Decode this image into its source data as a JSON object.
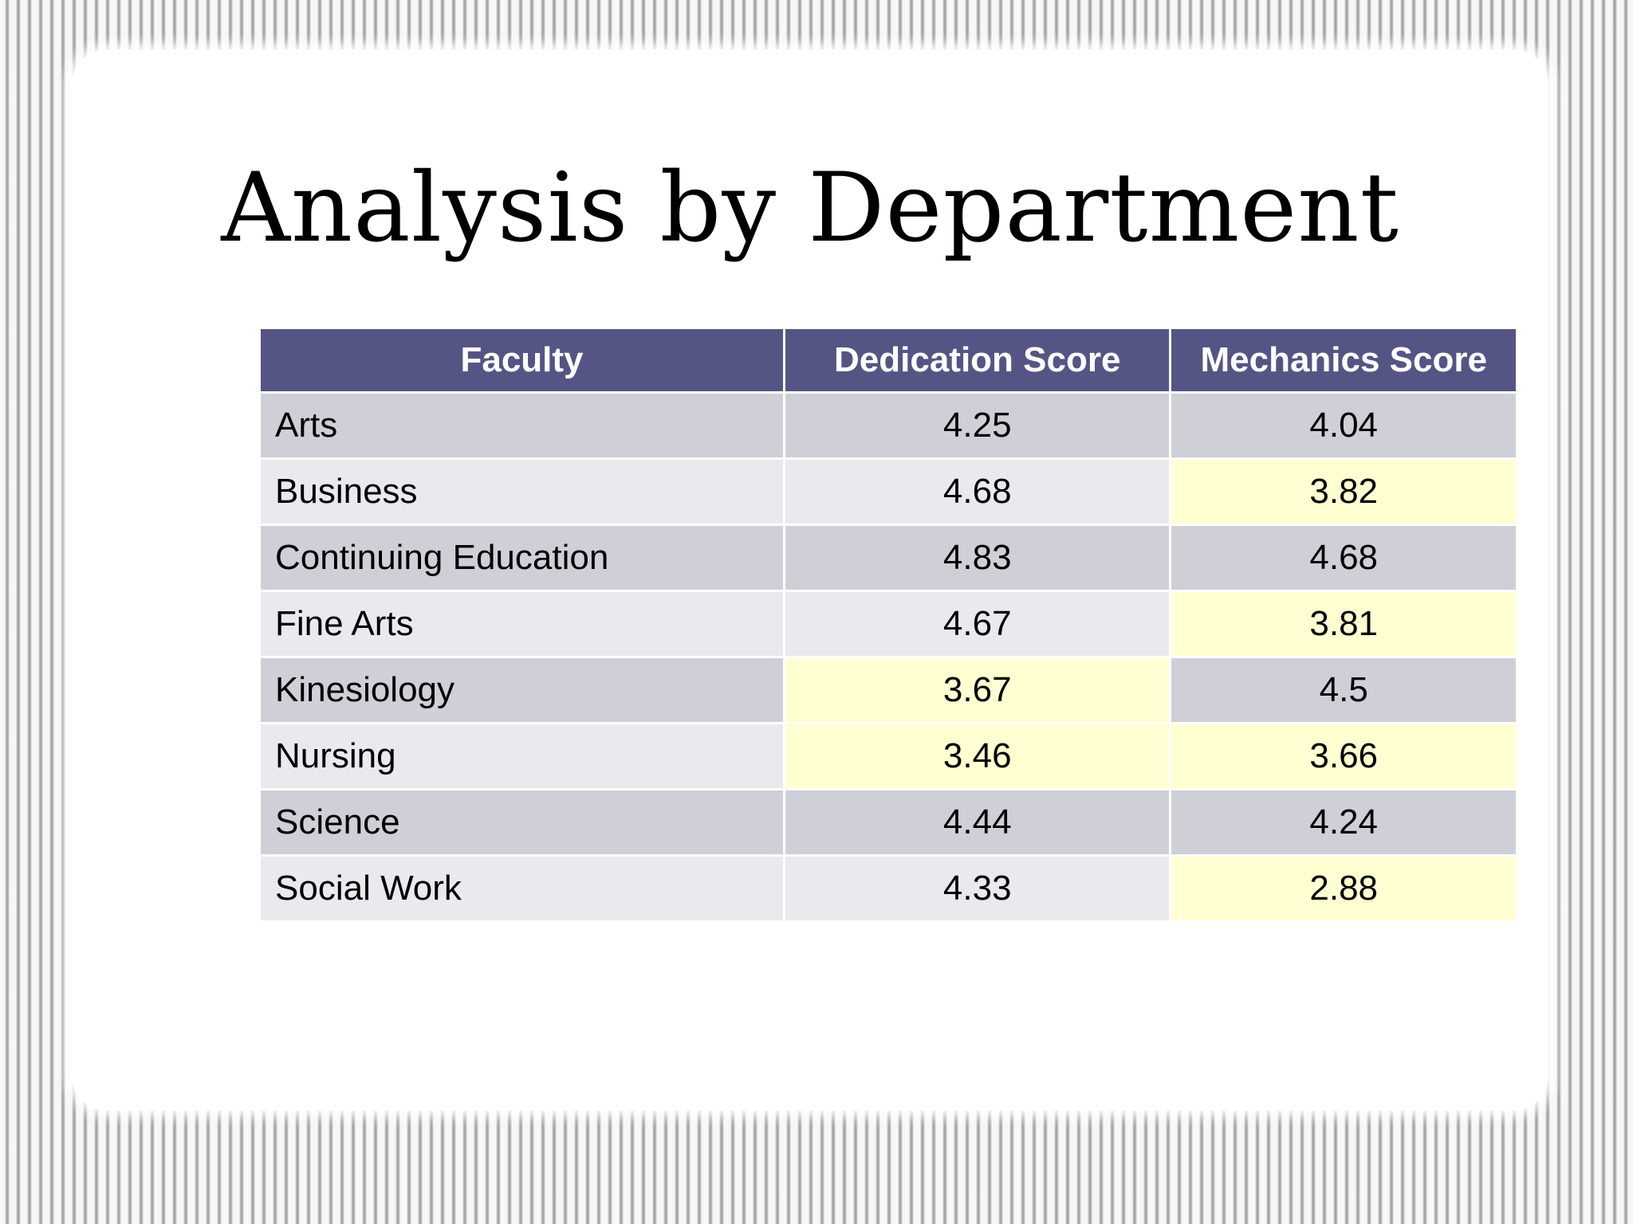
{
  "slide": {
    "title": "Analysis by Department"
  },
  "colors": {
    "header_bg": "#555585",
    "row_odd": "#cfcfd7",
    "row_even": "#e9e9ee",
    "highlight": "#ffffd2"
  },
  "table": {
    "headers": [
      "Faculty",
      "Dedication Score",
      "Mechanics Score"
    ],
    "rows": [
      {
        "faculty": "Arts",
        "dedication": "4.25",
        "mechanics": "4.04",
        "dedication_highlight": false,
        "mechanics_highlight": false
      },
      {
        "faculty": "Business",
        "dedication": "4.68",
        "mechanics": "3.82",
        "dedication_highlight": false,
        "mechanics_highlight": true
      },
      {
        "faculty": "Continuing Education",
        "dedication": "4.83",
        "mechanics": "4.68",
        "dedication_highlight": false,
        "mechanics_highlight": false
      },
      {
        "faculty": "Fine Arts",
        "dedication": "4.67",
        "mechanics": "3.81",
        "dedication_highlight": false,
        "mechanics_highlight": true
      },
      {
        "faculty": "Kinesiology",
        "dedication": "3.67",
        "mechanics": "4.5",
        "dedication_highlight": true,
        "mechanics_highlight": false
      },
      {
        "faculty": "Nursing",
        "dedication": "3.46",
        "mechanics": "3.66",
        "dedication_highlight": true,
        "mechanics_highlight": true
      },
      {
        "faculty": "Science",
        "dedication": "4.44",
        "mechanics": "4.24",
        "dedication_highlight": false,
        "mechanics_highlight": false
      },
      {
        "faculty": "Social Work",
        "dedication": "4.33",
        "mechanics": "2.88",
        "dedication_highlight": false,
        "mechanics_highlight": true
      }
    ]
  }
}
